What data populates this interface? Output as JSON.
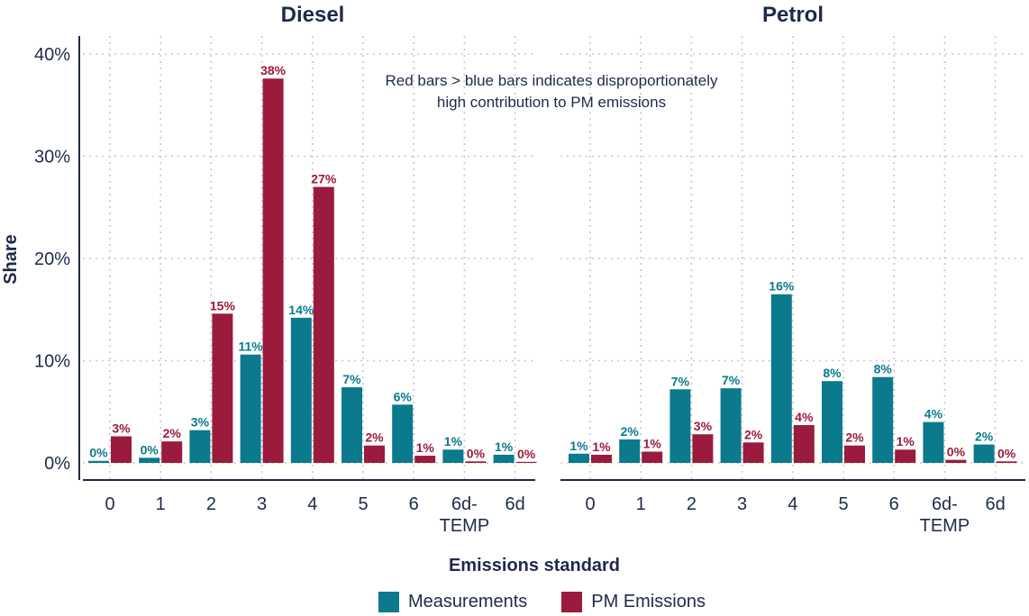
{
  "chart_data": {
    "type": "bar",
    "ylabel": "Share",
    "xlabel": "Emissions standard",
    "ylim": [
      0,
      40
    ],
    "yticks": [
      "0%",
      "10%",
      "20%",
      "30%",
      "40%"
    ],
    "grid": true,
    "legend_position": "bottom",
    "annotation": [
      "Red bars > blue bars indicates disproportionately",
      "high contribution to PM emissions"
    ],
    "panels": [
      {
        "title": "Diesel",
        "categories": [
          "0",
          "1",
          "2",
          "3",
          "4",
          "5",
          "6",
          "6d-TEMP",
          "6d"
        ],
        "series": [
          {
            "name": "Measurements",
            "values": [
              0.2,
              0.5,
              3.2,
              10.6,
              14.2,
              7.4,
              5.7,
              1.3,
              0.8
            ],
            "labels": [
              "0%",
              "0%",
              "3%",
              "11%",
              "14%",
              "7%",
              "6%",
              "1%",
              "1%"
            ]
          },
          {
            "name": "PM Emissions",
            "values": [
              2.6,
              2.1,
              14.6,
              37.6,
              27.0,
              1.7,
              0.7,
              0.15,
              0.1
            ],
            "labels": [
              "3%",
              "2%",
              "15%",
              "38%",
              "27%",
              "2%",
              "1%",
              "0%",
              "0%"
            ]
          }
        ]
      },
      {
        "title": "Petrol",
        "categories": [
          "0",
          "1",
          "2",
          "3",
          "4",
          "5",
          "6",
          "6d-TEMP",
          "6d"
        ],
        "series": [
          {
            "name": "Measurements",
            "values": [
              0.9,
              2.3,
              7.2,
              7.3,
              16.5,
              8.0,
              8.4,
              4.0,
              1.8
            ],
            "labels": [
              "1%",
              "2%",
              "7%",
              "7%",
              "16%",
              "8%",
              "8%",
              "4%",
              "2%"
            ]
          },
          {
            "name": "PM Emissions",
            "values": [
              0.8,
              1.1,
              2.8,
              2.0,
              3.7,
              1.7,
              1.3,
              0.3,
              0.15
            ],
            "labels": [
              "1%",
              "1%",
              "3%",
              "2%",
              "4%",
              "2%",
              "1%",
              "0%",
              "0%"
            ]
          }
        ]
      }
    ],
    "colors": {
      "Measurements": "#0b7a8c",
      "PM Emissions": "#9b1b3c",
      "text": "#1e2a4a",
      "grid": "#c8c8c8"
    }
  },
  "legend": [
    {
      "label": "Measurements",
      "color": "#0b7a8c"
    },
    {
      "label": "PM Emissions",
      "color": "#9b1b3c"
    }
  ]
}
